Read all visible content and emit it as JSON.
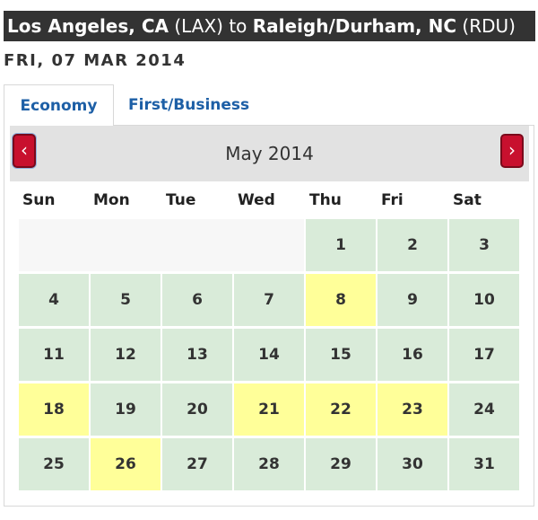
{
  "route": {
    "origin_city": "Los Angeles, CA",
    "origin_code": "(LAX)",
    "connector": "to",
    "dest_city": "Raleigh/Durham, NC",
    "dest_code": "(RDU)"
  },
  "date_heading": "FRI, 07 MAR 2014",
  "tabs": [
    {
      "label": "Economy",
      "active": true
    },
    {
      "label": "First/Business",
      "active": false
    }
  ],
  "calendar": {
    "month_title": "May 2014",
    "prev_icon": "chevron-left-icon",
    "next_icon": "chevron-right-icon",
    "weekdays": [
      "Sun",
      "Mon",
      "Tue",
      "Wed",
      "Thu",
      "Fri",
      "Sat"
    ],
    "first_weekday_index": 4,
    "days": [
      {
        "day": "1",
        "highlight": false
      },
      {
        "day": "2",
        "highlight": false
      },
      {
        "day": "3",
        "highlight": false
      },
      {
        "day": "4",
        "highlight": false
      },
      {
        "day": "5",
        "highlight": false
      },
      {
        "day": "6",
        "highlight": false
      },
      {
        "day": "7",
        "highlight": false
      },
      {
        "day": "8",
        "highlight": true
      },
      {
        "day": "9",
        "highlight": false
      },
      {
        "day": "10",
        "highlight": false
      },
      {
        "day": "11",
        "highlight": false
      },
      {
        "day": "12",
        "highlight": false
      },
      {
        "day": "13",
        "highlight": false
      },
      {
        "day": "14",
        "highlight": false
      },
      {
        "day": "15",
        "highlight": false
      },
      {
        "day": "16",
        "highlight": false
      },
      {
        "day": "17",
        "highlight": false
      },
      {
        "day": "18",
        "highlight": true
      },
      {
        "day": "19",
        "highlight": false
      },
      {
        "day": "20",
        "highlight": false
      },
      {
        "day": "21",
        "highlight": true
      },
      {
        "day": "22",
        "highlight": true
      },
      {
        "day": "23",
        "highlight": true
      },
      {
        "day": "24",
        "highlight": false
      },
      {
        "day": "25",
        "highlight": false
      },
      {
        "day": "26",
        "highlight": true
      },
      {
        "day": "27",
        "highlight": false
      },
      {
        "day": "28",
        "highlight": false
      },
      {
        "day": "29",
        "highlight": false
      },
      {
        "day": "30",
        "highlight": false
      },
      {
        "day": "31",
        "highlight": false
      }
    ]
  },
  "colors": {
    "route_bar": "#333333",
    "tab_text": "#1d5fa6",
    "nav_button": "#c8102e",
    "day_available": "#d9ebd9",
    "day_highlight": "#ffff99"
  }
}
